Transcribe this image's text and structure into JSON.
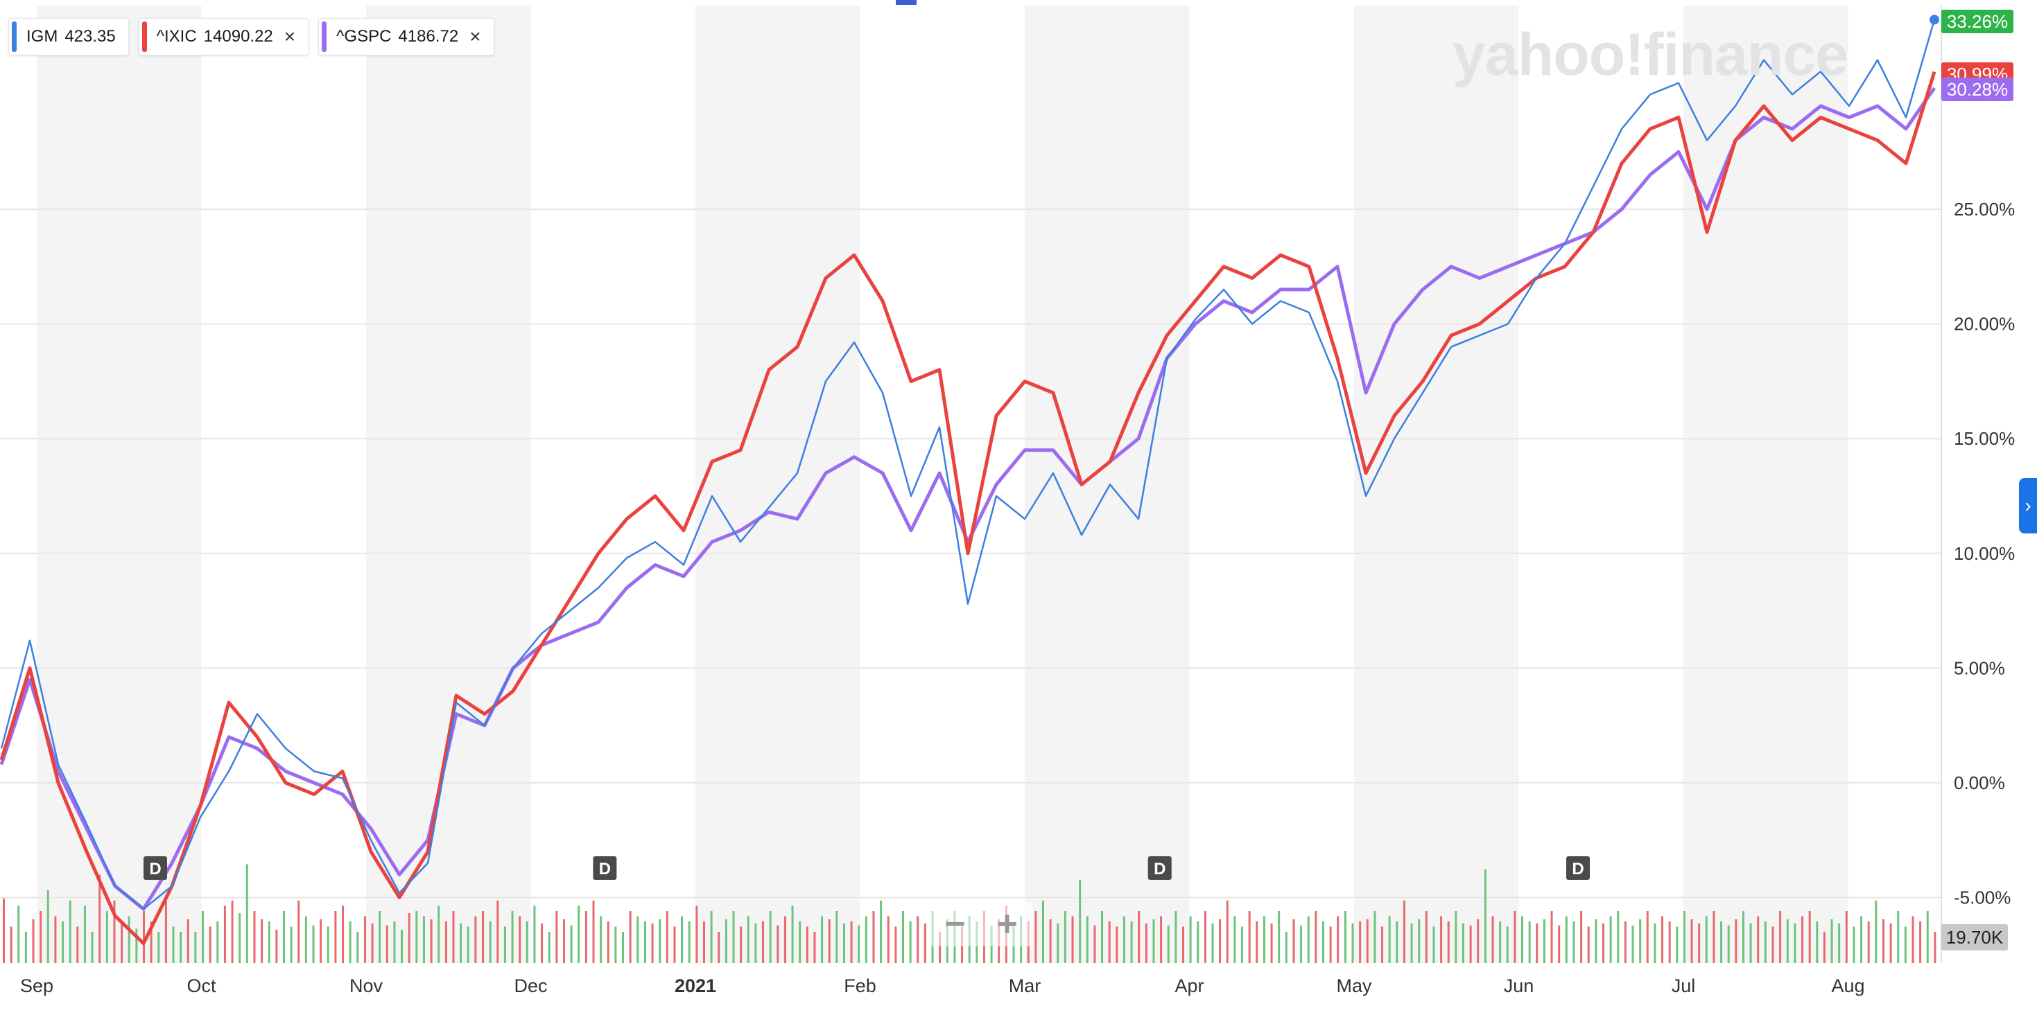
{
  "watermark": "yahoo!finance",
  "legend": [
    {
      "symbol": "IGM",
      "value": "423.35",
      "color": "#3d7fe0",
      "closable": false
    },
    {
      "symbol": "^IXIC",
      "value": "14090.22",
      "color": "#e8433f",
      "closable": true
    },
    {
      "symbol": "^GSPC",
      "value": "4186.72",
      "color": "#9b6cf0",
      "closable": true
    }
  ],
  "icons": {
    "close": "close-icon",
    "zoom_out": "minus-icon",
    "zoom_in": "plus-icon",
    "expand": "chevron-right-icon"
  },
  "zoom": {
    "minus": "−",
    "plus": "+"
  },
  "side_tab": "›",
  "chart_data": {
    "type": "line",
    "xlabel": "",
    "ylabel": "",
    "x_ticks": [
      "Sep",
      "Oct",
      "Nov",
      "Dec",
      "2021",
      "Feb",
      "Mar",
      "Apr",
      "May",
      "Jun",
      "Jul",
      "Aug"
    ],
    "y_ticks": [
      "25.00%",
      "20.00%",
      "15.00%",
      "10.00%",
      "5.00%",
      "0.00%",
      "-5.00%"
    ],
    "ylim": [
      -8,
      34
    ],
    "grid": true,
    "last_value_labels": [
      {
        "label": "33.26%",
        "color": "#2eb34a"
      },
      {
        "label": "30.99%",
        "color": "#e8433f"
      },
      {
        "label": "30.28%",
        "color": "#9b6cf0"
      }
    ],
    "volume_label": "19.70K",
    "dividend_markers": [
      {
        "label": "D",
        "month_pos": 0.72
      },
      {
        "label": "D",
        "month_pos": 3.45
      },
      {
        "label": "D",
        "month_pos": 6.82
      },
      {
        "label": "D",
        "month_pos": 9.36
      }
    ],
    "series": [
      {
        "name": "IGM",
        "color": "#3d7fe0",
        "values": [
          1.5,
          6.2,
          0.8,
          -1.8,
          -4.5,
          -5.5,
          -4.5,
          -1.5,
          0.5,
          3.0,
          1.5,
          0.5,
          0.2,
          -2.5,
          -4.8,
          -3.5,
          3.5,
          2.5,
          5.0,
          6.5,
          7.5,
          8.5,
          9.8,
          10.5,
          9.5,
          12.5,
          10.5,
          12.0,
          13.5,
          17.5,
          19.2,
          17.0,
          12.5,
          15.5,
          7.8,
          12.5,
          11.5,
          13.5,
          10.8,
          13.0,
          11.5,
          18.5,
          20.2,
          21.5,
          20.0,
          21.0,
          20.5,
          17.5,
          12.5,
          15.0,
          17.0,
          19.0,
          19.5,
          20.0,
          22.0,
          23.5,
          26.0,
          28.5,
          30.0,
          30.5,
          28.0,
          29.5,
          31.5,
          30.0,
          31.0,
          29.5,
          31.5,
          29.0,
          33.26
        ]
      },
      {
        "name": "^IXIC",
        "color": "#e8433f",
        "values": [
          1.0,
          5.0,
          0.0,
          -3.0,
          -5.8,
          -7.0,
          -4.5,
          -1.0,
          3.5,
          2.0,
          0.0,
          -0.5,
          0.5,
          -3.0,
          -5.0,
          -3.0,
          3.8,
          3.0,
          4.0,
          6.0,
          8.0,
          10.0,
          11.5,
          12.5,
          11.0,
          14.0,
          14.5,
          18.0,
          19.0,
          22.0,
          23.0,
          21.0,
          17.5,
          18.0,
          10.0,
          16.0,
          17.5,
          17.0,
          13.0,
          14.0,
          17.0,
          19.5,
          21.0,
          22.5,
          22.0,
          23.0,
          22.5,
          18.5,
          13.5,
          16.0,
          17.5,
          19.5,
          20.0,
          21.0,
          22.0,
          22.5,
          24.0,
          27.0,
          28.5,
          29.0,
          24.0,
          28.0,
          29.5,
          28.0,
          29.0,
          28.5,
          28.0,
          27.0,
          30.99
        ]
      },
      {
        "name": "^GSPC",
        "color": "#9b6cf0",
        "values": [
          0.8,
          4.5,
          0.5,
          -2.0,
          -4.5,
          -5.5,
          -3.5,
          -1.0,
          2.0,
          1.5,
          0.5,
          0.0,
          -0.5,
          -2.0,
          -4.0,
          -2.5,
          3.0,
          2.5,
          5.0,
          6.0,
          6.5,
          7.0,
          8.5,
          9.5,
          9.0,
          10.5,
          11.0,
          11.8,
          11.5,
          13.5,
          14.2,
          13.5,
          11.0,
          13.5,
          10.5,
          13.0,
          14.5,
          14.5,
          13.0,
          14.0,
          15.0,
          18.5,
          20.0,
          21.0,
          20.5,
          21.5,
          21.5,
          22.5,
          17.0,
          20.0,
          21.5,
          22.5,
          22.0,
          22.5,
          23.0,
          23.5,
          24.0,
          25.0,
          26.5,
          27.5,
          25.0,
          28.0,
          29.0,
          28.5,
          29.5,
          29.0,
          29.5,
          28.5,
          30.28
        ]
      }
    ],
    "volume": [
      0.62,
      0.35,
      0.55,
      0.3,
      0.42,
      0.5,
      0.7,
      0.45,
      0.4,
      0.6,
      0.35,
      0.55,
      0.3,
      0.85,
      0.5,
      0.6,
      0.38,
      0.45,
      0.33,
      0.5,
      0.4,
      0.3,
      0.65,
      0.35,
      0.3,
      0.42,
      0.3,
      0.5,
      0.35,
      0.4,
      0.55,
      0.6,
      0.48,
      0.95,
      0.5,
      0.42,
      0.4,
      0.32,
      0.5,
      0.35,
      0.6,
      0.45,
      0.36,
      0.42,
      0.35,
      0.5,
      0.55,
      0.4,
      0.3,
      0.45,
      0.38,
      0.5,
      0.36,
      0.4,
      0.32,
      0.48,
      0.5,
      0.45,
      0.42,
      0.55,
      0.4,
      0.5,
      0.38,
      0.35,
      0.45,
      0.5,
      0.4,
      0.6,
      0.35,
      0.5,
      0.45,
      0.4,
      0.55,
      0.38,
      0.3,
      0.5,
      0.42,
      0.36,
      0.55,
      0.5,
      0.6,
      0.45,
      0.4,
      0.35,
      0.3,
      0.5,
      0.45,
      0.4,
      0.38,
      0.42,
      0.5,
      0.35,
      0.45,
      0.4,
      0.55,
      0.4,
      0.5,
      0.3,
      0.42,
      0.5,
      0.35,
      0.45,
      0.38,
      0.4,
      0.5,
      0.36,
      0.45,
      0.55,
      0.4,
      0.35,
      0.3,
      0.45,
      0.42,
      0.5,
      0.38,
      0.4,
      0.36,
      0.45,
      0.5,
      0.6,
      0.45,
      0.35,
      0.5,
      0.4,
      0.45,
      0.38,
      0.5,
      0.3,
      0.42,
      0.5,
      0.35,
      0.45,
      0.4,
      0.5,
      0.36,
      0.42,
      0.55,
      0.35,
      0.45,
      0.4,
      0.5,
      0.6,
      0.42,
      0.38,
      0.5,
      0.45,
      0.8,
      0.45,
      0.36,
      0.5,
      0.4,
      0.35,
      0.45,
      0.4,
      0.5,
      0.38,
      0.42,
      0.45,
      0.36,
      0.5,
      0.35,
      0.45,
      0.4,
      0.5,
      0.38,
      0.42,
      0.6,
      0.45,
      0.35,
      0.5,
      0.4,
      0.45,
      0.38,
      0.5,
      0.3,
      0.42,
      0.36,
      0.45,
      0.5,
      0.4,
      0.35,
      0.45,
      0.5,
      0.38,
      0.4,
      0.42,
      0.5,
      0.35,
      0.45,
      0.4,
      0.6,
      0.38,
      0.42,
      0.5,
      0.35,
      0.45,
      0.4,
      0.5,
      0.38,
      0.36,
      0.42,
      0.9,
      0.45,
      0.4,
      0.35,
      0.5,
      0.45,
      0.4,
      0.38,
      0.42,
      0.5,
      0.36,
      0.45,
      0.4,
      0.5,
      0.35,
      0.42,
      0.38,
      0.45,
      0.5,
      0.4,
      0.36,
      0.42,
      0.5,
      0.38,
      0.45,
      0.4,
      0.35,
      0.5,
      0.42,
      0.38,
      0.45,
      0.5,
      0.4,
      0.36,
      0.42,
      0.5,
      0.38,
      0.45,
      0.4,
      0.35,
      0.5,
      0.42,
      0.38,
      0.45,
      0.5,
      0.4,
      0.3,
      0.42,
      0.38,
      0.5,
      0.35,
      0.45,
      0.4,
      0.6,
      0.42,
      0.38,
      0.5,
      0.35,
      0.45,
      0.4,
      0.5,
      0.3
    ]
  }
}
